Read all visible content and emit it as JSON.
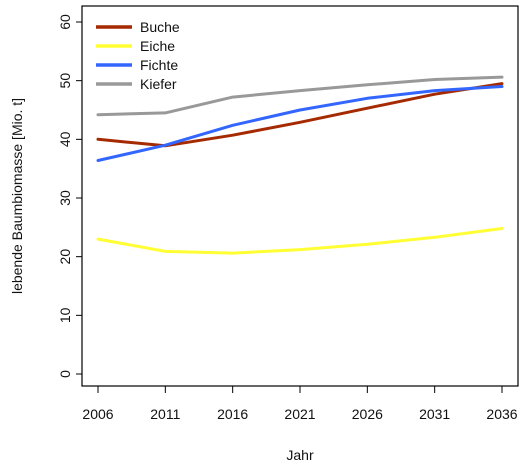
{
  "chart_data": {
    "type": "line",
    "title": "",
    "xlabel": "Jahr",
    "ylabel": "lebende Baumbiomasse [Mio. t]",
    "x": [
      2006,
      2011,
      2016,
      2021,
      2026,
      2031,
      2036
    ],
    "x_tick_labels": [
      "2006",
      "2011",
      "2016",
      "2021",
      "2026",
      "2031",
      "2036"
    ],
    "y_ticks": [
      0,
      10,
      20,
      30,
      40,
      50,
      60
    ],
    "y_tick_labels": [
      "0",
      "10",
      "20",
      "30",
      "40",
      "50",
      "60"
    ],
    "xlim": [
      2006,
      2036
    ],
    "ylim": [
      0,
      60
    ],
    "grid": false,
    "legend_position": "top-left",
    "series": [
      {
        "name": "Buche",
        "color": "#a52a00",
        "values": [
          40.0,
          38.9,
          40.7,
          42.9,
          45.3,
          47.7,
          49.5
        ]
      },
      {
        "name": "Eiche",
        "color": "#ffff33",
        "values": [
          23.0,
          20.9,
          20.6,
          21.2,
          22.1,
          23.3,
          24.8
        ]
      },
      {
        "name": "Fichte",
        "color": "#3366ff",
        "values": [
          36.4,
          39.0,
          42.4,
          45.0,
          47.0,
          48.3,
          49.0
        ]
      },
      {
        "name": "Kiefer",
        "color": "#999999",
        "values": [
          44.2,
          44.5,
          47.2,
          48.3,
          49.3,
          50.2,
          50.6
        ]
      }
    ]
  }
}
